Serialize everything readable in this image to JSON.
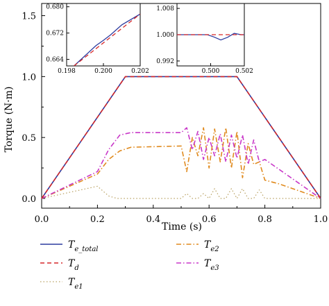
{
  "chart_data": {
    "type": "line",
    "xlabel": "Time (s)",
    "ylabel": "Torque (N·m)",
    "xlim": [
      0.0,
      1.0
    ],
    "ylim": [
      -0.08,
      1.6
    ],
    "xticks": [
      "0.0",
      "0.2",
      "0.4",
      "0.6",
      "0.8",
      "1.0"
    ],
    "yticks": [
      "0.0",
      "0.5",
      "1.0",
      "1.5"
    ],
    "grid": false,
    "legend_position": "bottom",
    "series": [
      {
        "id": "te_total",
        "name_main": "T",
        "name_sub": "e_total",
        "color": "#2b3a9f",
        "dash": "solid",
        "points": [
          [
            0,
            0
          ],
          [
            0.3,
            1.0
          ],
          [
            0.7,
            1.0
          ],
          [
            1.0,
            0
          ]
        ]
      },
      {
        "id": "td",
        "name_main": "T",
        "name_sub": "d",
        "color": "#d62728",
        "dash": "dashed",
        "points": [
          [
            0,
            0
          ],
          [
            0.3,
            1.0
          ],
          [
            0.7,
            1.0
          ],
          [
            1.0,
            0
          ]
        ]
      },
      {
        "id": "te1",
        "name_main": "T",
        "name_sub": "e1",
        "color": "#b8a060",
        "dash": "dotted",
        "points": [
          [
            0,
            0
          ],
          [
            0.2,
            0.1
          ],
          [
            0.21,
            0.08
          ],
          [
            0.24,
            0.02
          ],
          [
            0.27,
            0.0
          ],
          [
            0.3,
            0.0
          ],
          [
            0.5,
            0.0
          ],
          [
            0.52,
            0.04
          ],
          [
            0.54,
            0.0
          ],
          [
            0.56,
            0.0
          ],
          [
            0.58,
            0.04
          ],
          [
            0.6,
            0.0
          ],
          [
            0.62,
            0.08
          ],
          [
            0.64,
            0.0
          ],
          [
            0.66,
            0.0
          ],
          [
            0.68,
            0.08
          ],
          [
            0.7,
            0.0
          ],
          [
            0.72,
            0.08
          ],
          [
            0.74,
            0.0
          ],
          [
            0.76,
            0.0
          ],
          [
            0.78,
            0.07
          ],
          [
            0.8,
            0.0
          ],
          [
            1.0,
            0.0
          ]
        ]
      },
      {
        "id": "te2",
        "name_main": "T",
        "name_sub": "e2",
        "color": "#e08a1e",
        "dash": "dashdot",
        "points": [
          [
            0,
            0
          ],
          [
            0.2,
            0.2
          ],
          [
            0.24,
            0.32
          ],
          [
            0.28,
            0.39
          ],
          [
            0.32,
            0.42
          ],
          [
            0.5,
            0.43
          ],
          [
            0.52,
            0.22
          ],
          [
            0.54,
            0.5
          ],
          [
            0.56,
            0.35
          ],
          [
            0.58,
            0.58
          ],
          [
            0.6,
            0.25
          ],
          [
            0.62,
            0.57
          ],
          [
            0.64,
            0.3
          ],
          [
            0.66,
            0.58
          ],
          [
            0.68,
            0.25
          ],
          [
            0.7,
            0.55
          ],
          [
            0.72,
            0.17
          ],
          [
            0.74,
            0.45
          ],
          [
            0.76,
            0.28
          ],
          [
            0.78,
            0.3
          ],
          [
            0.8,
            0.15
          ],
          [
            0.85,
            0.12
          ],
          [
            0.9,
            0.08
          ],
          [
            1.0,
            0
          ]
        ]
      },
      {
        "id": "te3",
        "name_main": "T",
        "name_sub": "e3",
        "color": "#c837c8",
        "dash": "dashdot",
        "points": [
          [
            0,
            0
          ],
          [
            0.2,
            0.22
          ],
          [
            0.24,
            0.4
          ],
          [
            0.28,
            0.52
          ],
          [
            0.32,
            0.54
          ],
          [
            0.5,
            0.54
          ],
          [
            0.52,
            0.58
          ],
          [
            0.54,
            0.4
          ],
          [
            0.56,
            0.55
          ],
          [
            0.58,
            0.32
          ],
          [
            0.6,
            0.5
          ],
          [
            0.62,
            0.35
          ],
          [
            0.64,
            0.53
          ],
          [
            0.66,
            0.3
          ],
          [
            0.68,
            0.52
          ],
          [
            0.7,
            0.33
          ],
          [
            0.72,
            0.52
          ],
          [
            0.74,
            0.28
          ],
          [
            0.76,
            0.48
          ],
          [
            0.78,
            0.3
          ],
          [
            0.8,
            0.32
          ],
          [
            0.85,
            0.24
          ],
          [
            0.9,
            0.16
          ],
          [
            1.0,
            0
          ]
        ]
      }
    ],
    "insets": [
      {
        "id": "inset-left",
        "xlim": [
          0.198,
          0.202
        ],
        "ylim": [
          0.662,
          0.681
        ],
        "xticks": [
          "0.198",
          "0.200",
          "0.202"
        ],
        "yticks": [
          "0.664",
          "0.672",
          "0.680"
        ],
        "series": [
          {
            "ref": "te_total",
            "points": [
              [
                0.1984,
                0.662
              ],
              [
                0.1996,
                0.6682
              ],
              [
                0.2,
                0.6698
              ],
              [
                0.2004,
                0.6715
              ],
              [
                0.201,
                0.6745
              ],
              [
                0.202,
                0.6778
              ]
            ]
          },
          {
            "ref": "td",
            "points": [
              [
                0.1984,
                0.662
              ],
              [
                0.202,
                0.6778
              ]
            ]
          }
        ]
      },
      {
        "id": "inset-right",
        "xlim": [
          0.498,
          0.502
        ],
        "ylim": [
          0.9905,
          1.0095
        ],
        "xticks": [
          "0.500",
          "0.502"
        ],
        "yticks": [
          "0.992",
          "1.000",
          "1.008"
        ],
        "series": [
          {
            "ref": "te_total",
            "points": [
              [
                0.498,
                1.0
              ],
              [
                0.4998,
                1.0
              ],
              [
                0.5002,
                0.9993
              ],
              [
                0.5006,
                0.9984
              ],
              [
                0.501,
                0.9992
              ],
              [
                0.5014,
                1.0004
              ],
              [
                0.5018,
                1.0
              ],
              [
                0.502,
                1.0
              ]
            ]
          },
          {
            "ref": "td",
            "points": [
              [
                0.498,
                1.0
              ],
              [
                0.502,
                1.0
              ]
            ]
          }
        ]
      }
    ]
  }
}
